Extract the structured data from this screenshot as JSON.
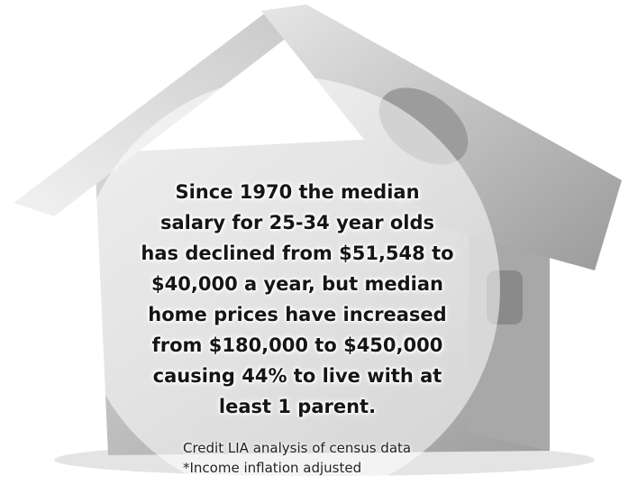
{
  "overlay": {
    "lines": [
      "Since 1970 the median",
      "salary for 25-34 year olds",
      "has declined from $51,548 to",
      "$40,000 a year, but median",
      "home prices have increased",
      "from $180,000 to $450,000",
      "causing 44% to live with at",
      "least 1 parent."
    ]
  },
  "credits": [
    "Credit LIA analysis of census data",
    "*Income inflation adjusted"
  ]
}
